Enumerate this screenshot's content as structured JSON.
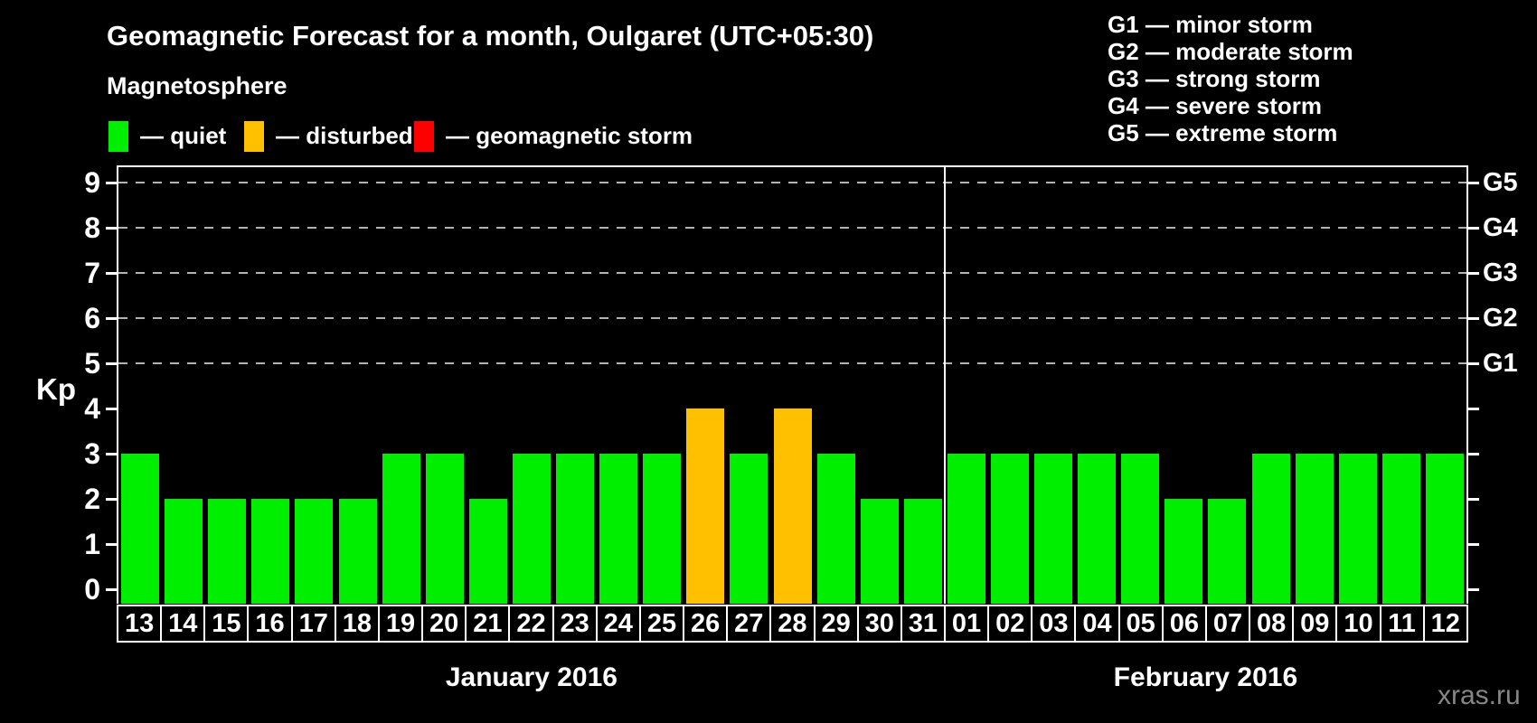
{
  "header": {
    "title": "Geomagnetic Forecast for a month, Oulgaret (UTC+05:30)",
    "subtitle": "Magnetosphere"
  },
  "legend": {
    "items": [
      {
        "name": "quiet",
        "label": "— quiet",
        "color": "#00ee00"
      },
      {
        "name": "disturbed",
        "label": "— disturbed",
        "color": "#ffc000"
      },
      {
        "name": "storm",
        "label": "— geomagnetic storm",
        "color": "#ff0000"
      }
    ]
  },
  "g_legend": [
    "G1 — minor storm",
    "G2 — moderate storm",
    "G3 — strong storm",
    "G4 — severe storm",
    "G5 — extreme storm"
  ],
  "axis": {
    "kp_label": "Kp",
    "kp_ticks": [
      "0",
      "1",
      "2",
      "3",
      "4",
      "5",
      "6",
      "7",
      "8",
      "9"
    ],
    "g_levels": [
      {
        "label": "G1",
        "kp": 5
      },
      {
        "label": "G2",
        "kp": 6
      },
      {
        "label": "G3",
        "kp": 7
      },
      {
        "label": "G4",
        "kp": 8
      },
      {
        "label": "G5",
        "kp": 9
      }
    ]
  },
  "chart_data": {
    "type": "bar",
    "title": "Geomagnetic Forecast for a month, Oulgaret (UTC+05:30)",
    "ylabel": "Kp",
    "ylim": [
      0,
      9
    ],
    "grid_levels_kp": [
      5,
      6,
      7,
      8,
      9
    ],
    "legend_position": "top",
    "status_colors": {
      "quiet": "#00ee00",
      "disturbed": "#ffc000",
      "storm": "#ff0000"
    },
    "month_groups": [
      {
        "label": "January 2016",
        "days": 19
      },
      {
        "label": "February 2016",
        "days": 12
      }
    ],
    "bars": [
      {
        "day": "13",
        "month": "January 2016",
        "kp": 3,
        "status": "quiet"
      },
      {
        "day": "14",
        "month": "January 2016",
        "kp": 2,
        "status": "quiet"
      },
      {
        "day": "15",
        "month": "January 2016",
        "kp": 2,
        "status": "quiet"
      },
      {
        "day": "16",
        "month": "January 2016",
        "kp": 2,
        "status": "quiet"
      },
      {
        "day": "17",
        "month": "January 2016",
        "kp": 2,
        "status": "quiet"
      },
      {
        "day": "18",
        "month": "January 2016",
        "kp": 2,
        "status": "quiet"
      },
      {
        "day": "19",
        "month": "January 2016",
        "kp": 3,
        "status": "quiet"
      },
      {
        "day": "20",
        "month": "January 2016",
        "kp": 3,
        "status": "quiet"
      },
      {
        "day": "21",
        "month": "January 2016",
        "kp": 2,
        "status": "quiet"
      },
      {
        "day": "22",
        "month": "January 2016",
        "kp": 3,
        "status": "quiet"
      },
      {
        "day": "23",
        "month": "January 2016",
        "kp": 3,
        "status": "quiet"
      },
      {
        "day": "24",
        "month": "January 2016",
        "kp": 3,
        "status": "quiet"
      },
      {
        "day": "25",
        "month": "January 2016",
        "kp": 3,
        "status": "quiet"
      },
      {
        "day": "26",
        "month": "January 2016",
        "kp": 4,
        "status": "disturbed"
      },
      {
        "day": "27",
        "month": "January 2016",
        "kp": 3,
        "status": "quiet"
      },
      {
        "day": "28",
        "month": "January 2016",
        "kp": 4,
        "status": "disturbed"
      },
      {
        "day": "29",
        "month": "January 2016",
        "kp": 3,
        "status": "quiet"
      },
      {
        "day": "30",
        "month": "January 2016",
        "kp": 2,
        "status": "quiet"
      },
      {
        "day": "31",
        "month": "January 2016",
        "kp": 2,
        "status": "quiet"
      },
      {
        "day": "01",
        "month": "February 2016",
        "kp": 3,
        "status": "quiet"
      },
      {
        "day": "02",
        "month": "February 2016",
        "kp": 3,
        "status": "quiet"
      },
      {
        "day": "03",
        "month": "February 2016",
        "kp": 3,
        "status": "quiet"
      },
      {
        "day": "04",
        "month": "February 2016",
        "kp": 3,
        "status": "quiet"
      },
      {
        "day": "05",
        "month": "February 2016",
        "kp": 3,
        "status": "quiet"
      },
      {
        "day": "06",
        "month": "February 2016",
        "kp": 2,
        "status": "quiet"
      },
      {
        "day": "07",
        "month": "February 2016",
        "kp": 2,
        "status": "quiet"
      },
      {
        "day": "08",
        "month": "February 2016",
        "kp": 3,
        "status": "quiet"
      },
      {
        "day": "09",
        "month": "February 2016",
        "kp": 3,
        "status": "quiet"
      },
      {
        "day": "10",
        "month": "February 2016",
        "kp": 3,
        "status": "quiet"
      },
      {
        "day": "11",
        "month": "February 2016",
        "kp": 3,
        "status": "quiet"
      },
      {
        "day": "12",
        "month": "February 2016",
        "kp": 3,
        "status": "quiet"
      }
    ]
  },
  "watermark": "xras.ru"
}
